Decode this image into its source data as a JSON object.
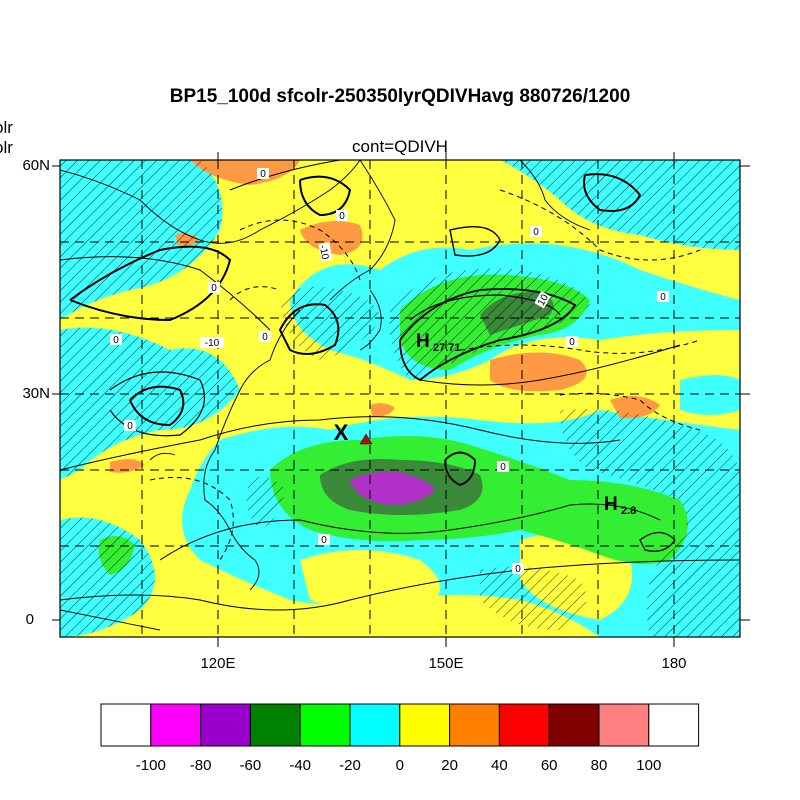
{
  "title": "BP15_100d sfcolr-250350lyrQDIVHavg  880726/1200",
  "subtitle": "cont=QDIVH",
  "left_labels": [
    "olr",
    "olr"
  ],
  "axes": {
    "y_ticks": [
      "60N",
      "30N",
      "0"
    ],
    "x_ticks": [
      "120E",
      "150E",
      "180"
    ]
  },
  "markers": {
    "x_symbol": "X",
    "highs": [
      {
        "letter": "H",
        "value": "27.71"
      },
      {
        "letter": "H",
        "value": "2.8"
      }
    ]
  },
  "contour_labels": [
    "0",
    "0",
    "0",
    "0",
    "0",
    "0",
    "0",
    "0",
    "0",
    "0",
    "0",
    "0",
    "-10",
    "-10",
    "10"
  ],
  "colorbar": {
    "labels": [
      "-100",
      "-80",
      "-60",
      "-40",
      "-20",
      "0",
      "20",
      "40",
      "60",
      "80",
      "100"
    ],
    "colors": [
      "#ffffff",
      "#ff00ff",
      "#9900cc",
      "#008000",
      "#00ff00",
      "#00ffff",
      "#ffff00",
      "#ff8000",
      "#ff0000",
      "#800000",
      "#ff8080",
      "#ffffff"
    ]
  },
  "colors": {
    "yellow": "#ffff40",
    "cyan": "#40ffff",
    "green": "#33ee33",
    "darkgreen": "#3a8a3a",
    "magenta": "#b030c8",
    "orange": "#ff9944",
    "triangle": "#aa1111"
  }
}
